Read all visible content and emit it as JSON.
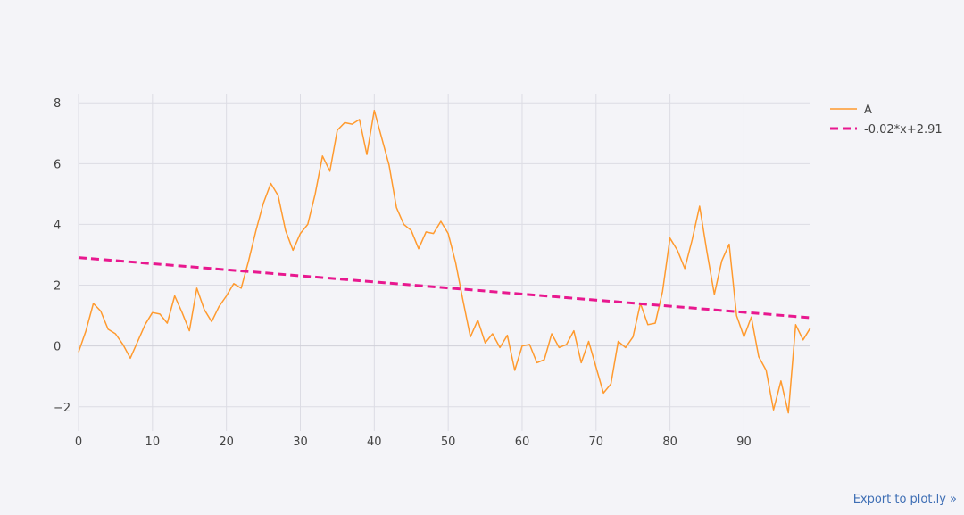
{
  "chart_data": {
    "type": "line",
    "xlim": [
      0,
      99
    ],
    "ylim": [
      -2.8,
      8.3
    ],
    "grid": true,
    "legend_position": "top-right",
    "x_ticks": [
      0,
      10,
      20,
      30,
      40,
      50,
      60,
      70,
      80,
      90
    ],
    "x_tick_labels": [
      "0",
      "10",
      "20",
      "30",
      "40",
      "50",
      "60",
      "70",
      "80",
      "90"
    ],
    "y_ticks": [
      -2,
      0,
      2,
      4,
      6,
      8
    ],
    "y_tick_labels": [
      "−2",
      "0",
      "2",
      "4",
      "6",
      "8"
    ],
    "series": [
      {
        "name": "A",
        "color": "#ff9a2e",
        "style": "solid",
        "x": [
          0,
          1,
          2,
          3,
          4,
          5,
          6,
          7,
          8,
          9,
          10,
          11,
          12,
          13,
          14,
          15,
          16,
          17,
          18,
          19,
          20,
          21,
          22,
          23,
          24,
          25,
          26,
          27,
          28,
          29,
          30,
          31,
          32,
          33,
          34,
          35,
          36,
          37,
          38,
          39,
          40,
          41,
          42,
          43,
          44,
          45,
          46,
          47,
          48,
          49,
          50,
          51,
          52,
          53,
          54,
          55,
          56,
          57,
          58,
          59,
          60,
          61,
          62,
          63,
          64,
          65,
          66,
          67,
          68,
          69,
          70,
          71,
          72,
          73,
          74,
          75,
          76,
          77,
          78,
          79,
          80,
          81,
          82,
          83,
          84,
          85,
          86,
          87,
          88,
          89,
          90,
          91,
          92,
          93,
          94,
          95,
          96,
          97,
          98,
          99
        ],
        "y": [
          -0.2,
          0.5,
          1.4,
          1.15,
          0.55,
          0.4,
          0.05,
          -0.4,
          0.15,
          0.7,
          1.1,
          1.05,
          0.75,
          1.65,
          1.1,
          0.5,
          1.9,
          1.2,
          0.8,
          1.3,
          1.65,
          2.05,
          1.9,
          2.8,
          3.8,
          4.7,
          5.35,
          4.95,
          3.8,
          3.15,
          3.7,
          4.0,
          5.0,
          6.25,
          5.75,
          7.1,
          7.35,
          7.3,
          7.45,
          6.3,
          7.75,
          6.85,
          5.95,
          4.55,
          4.0,
          3.8,
          3.2,
          3.75,
          3.7,
          4.1,
          3.7,
          2.75,
          1.5,
          0.3,
          0.85,
          0.1,
          0.4,
          -0.05,
          0.35,
          -0.8,
          0.0,
          0.05,
          -0.55,
          -0.45,
          0.4,
          -0.05,
          0.05,
          0.5,
          -0.55,
          0.15,
          -0.7,
          -1.55,
          -1.25,
          0.15,
          -0.05,
          0.3,
          1.4,
          0.7,
          0.75,
          1.8,
          3.55,
          3.15,
          2.55,
          3.5,
          4.6,
          3.1,
          1.7,
          2.8,
          3.35,
          1.0,
          0.3,
          0.95,
          -0.35,
          -0.8,
          -2.1,
          -1.15,
          -2.2,
          0.7,
          0.2,
          0.6
        ]
      },
      {
        "name": "-0.02*x+2.91",
        "color": "#e8188f",
        "style": "dash",
        "x": [
          0,
          99
        ],
        "y": [
          2.91,
          0.93
        ]
      }
    ]
  },
  "export_link": {
    "label": "Export to plot.ly »"
  }
}
